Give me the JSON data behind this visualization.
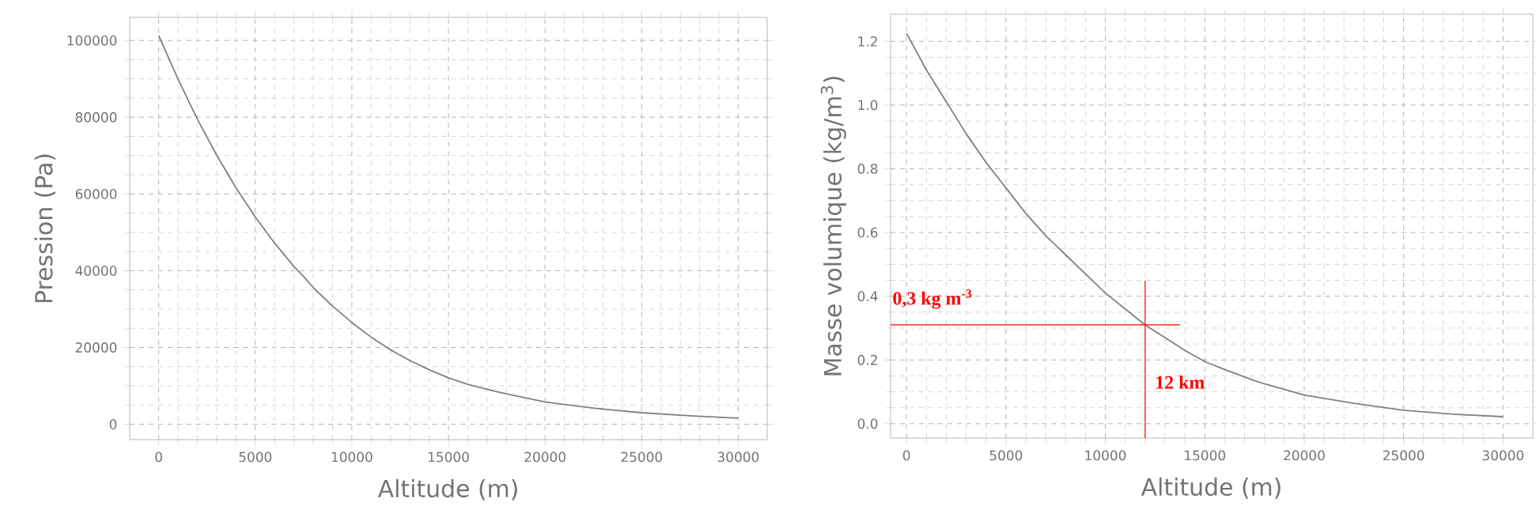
{
  "chart_data": [
    {
      "type": "line",
      "xlabel": "Altitude (m)",
      "ylabel": "Pression (Pa)",
      "color": "#808080",
      "grid": true,
      "x": [
        0,
        1000,
        2000,
        3000,
        4000,
        5000,
        6000,
        7000,
        7500,
        8000,
        9000,
        10000,
        11000,
        12000,
        12500,
        13000,
        14000,
        15000,
        16000,
        17500,
        18000,
        20000,
        22500,
        25000,
        27500,
        30000
      ],
      "values": [
        101300,
        89900,
        79500,
        70100,
        61600,
        54000,
        47200,
        41100,
        38500,
        35600,
        30800,
        26500,
        22700,
        19400,
        18000,
        16600,
        14200,
        12100,
        10400,
        8500,
        7900,
        5800,
        4200,
        3000,
        2200,
        1600
      ],
      "xlim": [
        -1500,
        31500
      ],
      "ylim": [
        -4000,
        106000
      ],
      "xticks": [
        0,
        5000,
        10000,
        15000,
        20000,
        25000,
        30000
      ],
      "yticks": [
        0,
        20000,
        40000,
        60000,
        80000,
        100000
      ]
    },
    {
      "type": "line",
      "xlabel": "Altitude (m)",
      "ylabel": "Masse volumique (kg/m$^{3}$)",
      "color": "#808080",
      "grid": true,
      "x": [
        0,
        1000,
        2000,
        3000,
        4000,
        5000,
        6000,
        7000,
        7500,
        8000,
        9000,
        10000,
        11000,
        12000,
        12500,
        13000,
        14000,
        15000,
        16000,
        17500,
        18000,
        20000,
        22500,
        25000,
        27500,
        30000
      ],
      "values": [
        1.225,
        1.11,
        1.01,
        0.91,
        0.82,
        0.74,
        0.66,
        0.59,
        0.56,
        0.53,
        0.47,
        0.41,
        0.36,
        0.31,
        0.29,
        0.27,
        0.23,
        0.195,
        0.17,
        0.135,
        0.125,
        0.09,
        0.064,
        0.042,
        0.03,
        0.022
      ],
      "xlim": [
        -800,
        31500
      ],
      "ylim": [
        -0.045,
        1.285
      ],
      "xticks": [
        0,
        5000,
        10000,
        15000,
        20000,
        25000,
        30000
      ],
      "yticks": [
        {
          "value": 0,
          "label": "0.0"
        },
        {
          "value": 0.2,
          "label": "0.2"
        },
        {
          "value": 0.4,
          "label": "0.4"
        },
        {
          "value": 0.6,
          "label": "0.6"
        },
        {
          "value": 0.8,
          "label": "0.8"
        },
        {
          "value": 1.0,
          "label": "1.0"
        },
        {
          "value": 1.2,
          "label": "1.2"
        }
      ],
      "ref_lines": [
        {
          "axis": "y",
          "value": 0.31,
          "label": "0,3 kg m$^{-3}$",
          "color": "#ff0000"
        },
        {
          "axis": "x",
          "value": 12000,
          "label": "12 km",
          "color": "#ff0000"
        }
      ]
    }
  ]
}
